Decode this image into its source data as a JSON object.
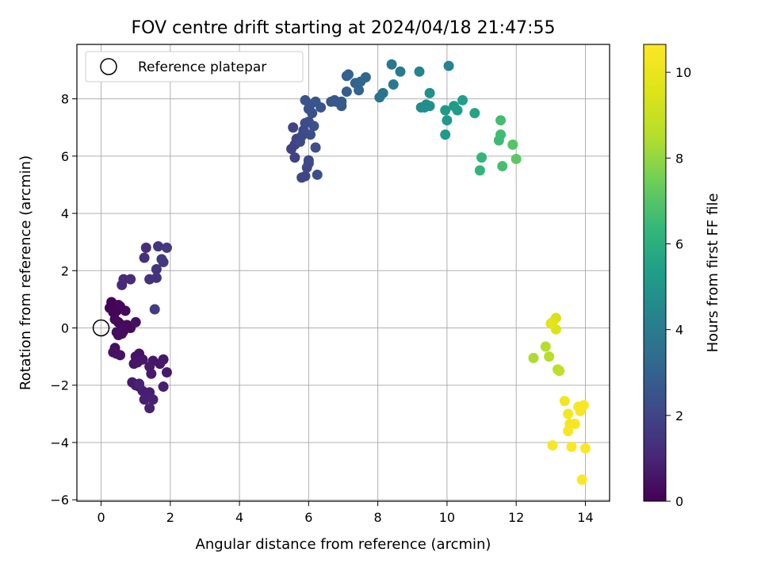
{
  "chart_data": {
    "type": "scatter",
    "title": "FOV centre drift starting at 2024/04/18 21:47:55",
    "xlabel": "Angular distance from reference (arcmin)",
    "ylabel": "Rotation from reference (arcmin)",
    "xlim": [
      -0.7,
      14.7
    ],
    "ylim": [
      -6.05,
      9.9
    ],
    "xticks": [
      0,
      2,
      4,
      6,
      8,
      10,
      12,
      14
    ],
    "yticks": [
      -6,
      -4,
      -2,
      0,
      2,
      4,
      6,
      8
    ],
    "grid": true,
    "legend": {
      "placement": "top-left",
      "entries": [
        "Reference platepar"
      ]
    },
    "reference_point": {
      "x": 0,
      "y": 0,
      "label": "Reference platepar"
    },
    "colorbar": {
      "label": "Hours from first FF file",
      "colormap": "viridis",
      "range": [
        0,
        10.65
      ],
      "ticks": [
        0,
        2,
        4,
        6,
        8,
        10
      ]
    },
    "series": [
      {
        "color_by": "hours",
        "points": [
          {
            "x": 0.3,
            "y": 0.9,
            "h": 0.05
          },
          {
            "x": 0.25,
            "y": 0.7,
            "h": 0.07
          },
          {
            "x": 0.4,
            "y": 0.8,
            "h": 0.09
          },
          {
            "x": 0.5,
            "y": 0.8,
            "h": 0.1
          },
          {
            "x": 0.35,
            "y": 0.55,
            "h": 0.12
          },
          {
            "x": 0.45,
            "y": 0.6,
            "h": 0.14
          },
          {
            "x": 0.55,
            "y": 0.75,
            "h": 0.16
          },
          {
            "x": 0.4,
            "y": 0.3,
            "h": 0.18
          },
          {
            "x": 0.5,
            "y": 0.2,
            "h": 0.2
          },
          {
            "x": 0.6,
            "y": 0.1,
            "h": 0.22
          },
          {
            "x": 0.7,
            "y": 0.6,
            "h": 0.24
          },
          {
            "x": 0.75,
            "y": 0.1,
            "h": 0.26
          },
          {
            "x": 0.85,
            "y": 0.0,
            "h": 0.28
          },
          {
            "x": 0.65,
            "y": -0.1,
            "h": 0.3
          },
          {
            "x": 0.55,
            "y": -0.1,
            "h": 0.32
          },
          {
            "x": 0.45,
            "y": -0.15,
            "h": 0.34
          },
          {
            "x": 0.5,
            "y": -0.25,
            "h": 0.36
          },
          {
            "x": 0.6,
            "y": -0.2,
            "h": 0.38
          },
          {
            "x": 1.0,
            "y": 0.2,
            "h": 0.4
          },
          {
            "x": 0.4,
            "y": -0.7,
            "h": 0.42
          },
          {
            "x": 0.45,
            "y": -0.9,
            "h": 0.44
          },
          {
            "x": 0.35,
            "y": -0.85,
            "h": 0.46
          },
          {
            "x": 0.55,
            "y": -0.95,
            "h": 0.48
          },
          {
            "x": 1.0,
            "y": -1.0,
            "h": 0.5
          },
          {
            "x": 1.1,
            "y": -0.9,
            "h": 0.52
          },
          {
            "x": 0.95,
            "y": -1.25,
            "h": 0.54
          },
          {
            "x": 1.05,
            "y": -1.2,
            "h": 0.56
          },
          {
            "x": 1.2,
            "y": -1.1,
            "h": 0.58
          },
          {
            "x": 1.5,
            "y": -1.15,
            "h": 0.6
          },
          {
            "x": 1.7,
            "y": -1.25,
            "h": 0.62
          },
          {
            "x": 1.8,
            "y": -1.1,
            "h": 0.64
          },
          {
            "x": 1.4,
            "y": -1.35,
            "h": 0.66
          },
          {
            "x": 1.45,
            "y": -1.6,
            "h": 0.68
          },
          {
            "x": 1.9,
            "y": -1.55,
            "h": 0.7
          },
          {
            "x": 0.9,
            "y": -1.9,
            "h": 0.72
          },
          {
            "x": 1.0,
            "y": -2.0,
            "h": 0.74
          },
          {
            "x": 1.1,
            "y": -2.05,
            "h": 0.76
          },
          {
            "x": 1.2,
            "y": -2.2,
            "h": 0.78
          },
          {
            "x": 1.3,
            "y": -2.3,
            "h": 0.8
          },
          {
            "x": 1.4,
            "y": -2.25,
            "h": 0.82
          },
          {
            "x": 1.8,
            "y": -2.05,
            "h": 0.84
          },
          {
            "x": 1.25,
            "y": -2.5,
            "h": 0.86
          },
          {
            "x": 1.5,
            "y": -2.5,
            "h": 0.88
          },
          {
            "x": 1.4,
            "y": -2.8,
            "h": 0.9
          },
          {
            "x": 1.1,
            "y": -1.95,
            "h": 0.92
          },
          {
            "x": 0.6,
            "y": 1.5,
            "h": 1.1
          },
          {
            "x": 0.65,
            "y": 1.7,
            "h": 1.15
          },
          {
            "x": 0.85,
            "y": 1.7,
            "h": 1.2
          },
          {
            "x": 1.3,
            "y": 2.8,
            "h": 1.25
          },
          {
            "x": 1.25,
            "y": 2.45,
            "h": 1.3
          },
          {
            "x": 1.4,
            "y": 1.7,
            "h": 1.35
          },
          {
            "x": 1.6,
            "y": 1.75,
            "h": 1.4
          },
          {
            "x": 1.6,
            "y": 2.05,
            "h": 1.45
          },
          {
            "x": 1.65,
            "y": 2.85,
            "h": 1.5
          },
          {
            "x": 1.75,
            "y": 2.4,
            "h": 1.55
          },
          {
            "x": 1.8,
            "y": 2.3,
            "h": 1.6
          },
          {
            "x": 1.9,
            "y": 2.8,
            "h": 1.65
          },
          {
            "x": 1.55,
            "y": 0.65,
            "h": 1.7
          },
          {
            "x": 5.6,
            "y": 5.95,
            "h": 1.85
          },
          {
            "x": 5.5,
            "y": 6.25,
            "h": 1.88
          },
          {
            "x": 5.6,
            "y": 6.4,
            "h": 1.91
          },
          {
            "x": 5.65,
            "y": 6.6,
            "h": 1.94
          },
          {
            "x": 5.55,
            "y": 7.0,
            "h": 1.97
          },
          {
            "x": 5.8,
            "y": 5.25,
            "h": 2.0
          },
          {
            "x": 5.9,
            "y": 5.3,
            "h": 2.03
          },
          {
            "x": 5.95,
            "y": 5.6,
            "h": 2.06
          },
          {
            "x": 6.0,
            "y": 5.85,
            "h": 2.09
          },
          {
            "x": 6.0,
            "y": 5.75,
            "h": 2.12
          },
          {
            "x": 5.75,
            "y": 6.5,
            "h": 2.15
          },
          {
            "x": 5.8,
            "y": 6.7,
            "h": 2.18
          },
          {
            "x": 5.85,
            "y": 6.9,
            "h": 2.21
          },
          {
            "x": 5.9,
            "y": 7.15,
            "h": 2.24
          },
          {
            "x": 6.0,
            "y": 7.2,
            "h": 2.27
          },
          {
            "x": 6.05,
            "y": 6.75,
            "h": 2.3
          },
          {
            "x": 6.2,
            "y": 6.3,
            "h": 2.33
          },
          {
            "x": 6.25,
            "y": 5.35,
            "h": 2.36
          },
          {
            "x": 6.15,
            "y": 7.05,
            "h": 2.39
          },
          {
            "x": 6.1,
            "y": 7.5,
            "h": 2.42
          },
          {
            "x": 6.0,
            "y": 7.65,
            "h": 2.45
          },
          {
            "x": 5.9,
            "y": 7.95,
            "h": 2.48
          },
          {
            "x": 6.05,
            "y": 7.8,
            "h": 2.51
          },
          {
            "x": 6.2,
            "y": 7.9,
            "h": 2.54
          },
          {
            "x": 6.35,
            "y": 7.7,
            "h": 2.57
          },
          {
            "x": 6.65,
            "y": 7.9,
            "h": 2.6
          },
          {
            "x": 6.75,
            "y": 7.95,
            "h": 2.63
          },
          {
            "x": 6.8,
            "y": 7.9,
            "h": 2.66
          },
          {
            "x": 6.95,
            "y": 7.9,
            "h": 2.69
          },
          {
            "x": 6.95,
            "y": 7.75,
            "h": 2.72
          },
          {
            "x": 7.1,
            "y": 8.25,
            "h": 2.85
          },
          {
            "x": 7.1,
            "y": 8.8,
            "h": 2.9
          },
          {
            "x": 7.15,
            "y": 8.85,
            "h": 2.95
          },
          {
            "x": 7.35,
            "y": 8.55,
            "h": 3.0
          },
          {
            "x": 7.45,
            "y": 8.3,
            "h": 3.05
          },
          {
            "x": 7.5,
            "y": 8.6,
            "h": 3.1
          },
          {
            "x": 7.65,
            "y": 8.75,
            "h": 3.15
          },
          {
            "x": 8.05,
            "y": 8.05,
            "h": 3.7
          },
          {
            "x": 8.15,
            "y": 8.2,
            "h": 3.75
          },
          {
            "x": 8.4,
            "y": 9.2,
            "h": 3.8
          },
          {
            "x": 8.45,
            "y": 8.5,
            "h": 3.85
          },
          {
            "x": 8.65,
            "y": 8.95,
            "h": 3.9
          },
          {
            "x": 9.2,
            "y": 8.95,
            "h": 4.35
          },
          {
            "x": 9.25,
            "y": 7.7,
            "h": 4.6
          },
          {
            "x": 9.35,
            "y": 7.7,
            "h": 4.65
          },
          {
            "x": 9.4,
            "y": 7.8,
            "h": 4.7
          },
          {
            "x": 9.5,
            "y": 7.75,
            "h": 4.75
          },
          {
            "x": 9.5,
            "y": 8.2,
            "h": 4.8
          },
          {
            "x": 10.05,
            "y": 9.15,
            "h": 4.35
          },
          {
            "x": 9.95,
            "y": 7.6,
            "h": 5.1
          },
          {
            "x": 10.0,
            "y": 7.25,
            "h": 5.15
          },
          {
            "x": 9.95,
            "y": 6.75,
            "h": 5.2
          },
          {
            "x": 10.2,
            "y": 7.75,
            "h": 5.25
          },
          {
            "x": 10.3,
            "y": 7.6,
            "h": 5.3
          },
          {
            "x": 10.45,
            "y": 7.95,
            "h": 5.35
          },
          {
            "x": 10.8,
            "y": 7.5,
            "h": 5.6
          },
          {
            "x": 10.95,
            "y": 5.5,
            "h": 6.25
          },
          {
            "x": 11.0,
            "y": 5.95,
            "h": 6.3
          },
          {
            "x": 11.5,
            "y": 6.55,
            "h": 6.55
          },
          {
            "x": 11.55,
            "y": 6.75,
            "h": 6.6
          },
          {
            "x": 11.55,
            "y": 7.25,
            "h": 6.65
          },
          {
            "x": 11.6,
            "y": 5.65,
            "h": 6.7
          },
          {
            "x": 11.9,
            "y": 6.4,
            "h": 7.0
          },
          {
            "x": 12.0,
            "y": 5.9,
            "h": 7.1
          },
          {
            "x": 12.5,
            "y": -1.05,
            "h": 8.4
          },
          {
            "x": 12.85,
            "y": -0.65,
            "h": 8.5
          },
          {
            "x": 12.95,
            "y": -1.0,
            "h": 8.55
          },
          {
            "x": 13.2,
            "y": -1.45,
            "h": 8.7
          },
          {
            "x": 13.25,
            "y": -1.5,
            "h": 8.75
          },
          {
            "x": 13.15,
            "y": 0.35,
            "h": 9.4
          },
          {
            "x": 13.05,
            "y": 0.2,
            "h": 9.6
          },
          {
            "x": 13.15,
            "y": -0.05,
            "h": 9.5
          },
          {
            "x": 13.0,
            "y": 0.15,
            "h": 9.8
          },
          {
            "x": 13.4,
            "y": -2.55,
            "h": 10.3
          },
          {
            "x": 13.5,
            "y": -3.0,
            "h": 10.35
          },
          {
            "x": 13.55,
            "y": -3.35,
            "h": 10.4
          },
          {
            "x": 13.5,
            "y": -3.6,
            "h": 10.42
          },
          {
            "x": 13.7,
            "y": -3.35,
            "h": 10.45
          },
          {
            "x": 13.8,
            "y": -2.75,
            "h": 10.48
          },
          {
            "x": 13.85,
            "y": -2.9,
            "h": 10.5
          },
          {
            "x": 13.95,
            "y": -2.7,
            "h": 10.52
          },
          {
            "x": 13.05,
            "y": -4.1,
            "h": 10.55
          },
          {
            "x": 13.6,
            "y": -4.15,
            "h": 10.58
          },
          {
            "x": 14.0,
            "y": -4.2,
            "h": 10.6
          },
          {
            "x": 13.9,
            "y": -5.3,
            "h": 10.62
          }
        ]
      }
    ]
  }
}
